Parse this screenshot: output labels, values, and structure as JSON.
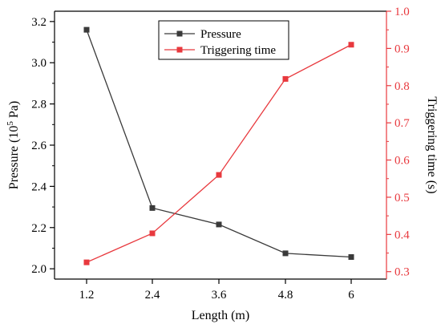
{
  "chart_data": {
    "type": "line",
    "xlabel": "Length (m)",
    "x": [
      "1.2",
      "2.4",
      "3.6",
      "4.8",
      "6"
    ],
    "left_axis": {
      "ylabel_main": "Pressure (10",
      "ylabel_sup": "5",
      "ylabel_end": " Pa)",
      "ylim": [
        1.95,
        3.25
      ],
      "ticks": [
        "2.0",
        "2.2",
        "2.4",
        "2.6",
        "2.8",
        "3.0",
        "3.2"
      ]
    },
    "right_axis": {
      "ylabel": "Triggering time (s)",
      "ylim": [
        0.28,
        1.0
      ],
      "ticks": [
        "0.3",
        "0.4",
        "0.5",
        "0.6",
        "0.7",
        "0.8",
        "0.9",
        "1.0"
      ]
    },
    "series": [
      {
        "name": "Pressure",
        "axis": "left",
        "color": "#3a3a3a",
        "values": [
          3.16,
          2.295,
          2.215,
          2.075,
          2.057
        ]
      },
      {
        "name": "Triggering time",
        "axis": "right",
        "color": "#e8393e",
        "values": [
          0.325,
          0.403,
          0.56,
          0.818,
          0.91
        ]
      }
    ],
    "legend_position": "top-center",
    "grid": false
  }
}
